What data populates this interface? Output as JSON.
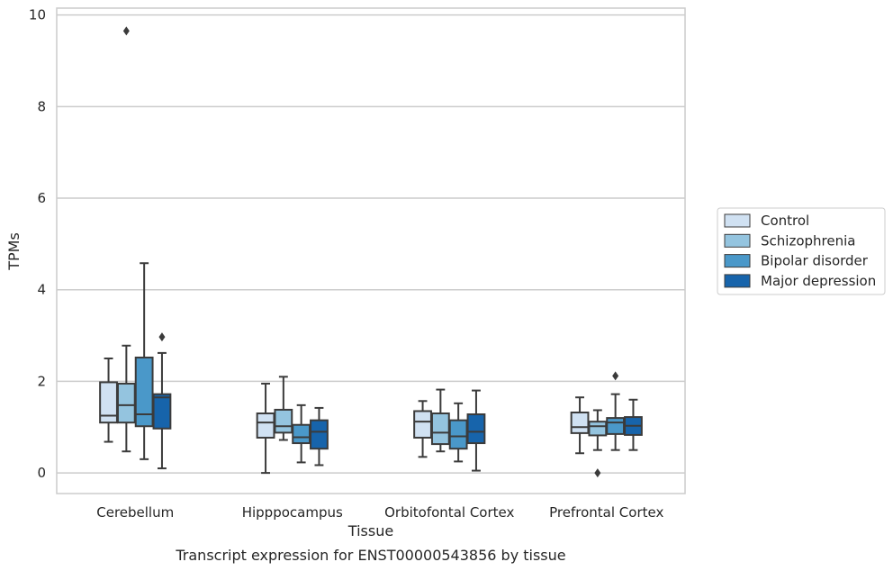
{
  "chart_data": {
    "type": "box",
    "title": "",
    "caption": "Transcript expression for ENST00000543856 by tissue",
    "xlabel": "Tissue",
    "ylabel": "TPMs",
    "ylim": [
      -0.45,
      10.15
    ],
    "yticks": [
      0,
      2,
      4,
      6,
      8,
      10
    ],
    "grid": "horizontal",
    "legend_position": "right",
    "categories": [
      "Cerebellum",
      "Hipppocampus",
      "Orbitofontal Cortex",
      "Prefrontal Cortex"
    ],
    "series": [
      {
        "name": "Control",
        "color": "#d0e1f2",
        "boxes": [
          {
            "whislo": 0.68,
            "q1": 1.1,
            "med": 1.25,
            "q3": 1.98,
            "whishi": 2.5,
            "fliers": []
          },
          {
            "whislo": 0.0,
            "q1": 0.77,
            "med": 1.1,
            "q3": 1.3,
            "whishi": 1.95,
            "fliers": []
          },
          {
            "whislo": 0.35,
            "q1": 0.77,
            "med": 1.12,
            "q3": 1.35,
            "whishi": 1.57,
            "fliers": []
          },
          {
            "whislo": 0.43,
            "q1": 0.87,
            "med": 1.0,
            "q3": 1.32,
            "whishi": 1.65,
            "fliers": []
          }
        ]
      },
      {
        "name": "Schizophrenia",
        "color": "#94c4df",
        "boxes": [
          {
            "whislo": 0.47,
            "q1": 1.1,
            "med": 1.48,
            "q3": 1.95,
            "whishi": 2.78,
            "fliers": [
              9.65
            ]
          },
          {
            "whislo": 0.72,
            "q1": 0.88,
            "med": 1.02,
            "q3": 1.38,
            "whishi": 2.1,
            "fliers": []
          },
          {
            "whislo": 0.47,
            "q1": 0.63,
            "med": 0.88,
            "q3": 1.3,
            "whishi": 1.82,
            "fliers": []
          },
          {
            "whislo": 0.5,
            "q1": 0.82,
            "med": 1.02,
            "q3": 1.12,
            "whishi": 1.37,
            "fliers": [
              0.0
            ]
          }
        ]
      },
      {
        "name": "Bipolar disorder",
        "color": "#4a98c9",
        "boxes": [
          {
            "whislo": 0.3,
            "q1": 1.02,
            "med": 1.28,
            "q3": 2.52,
            "whishi": 4.58,
            "fliers": []
          },
          {
            "whislo": 0.23,
            "q1": 0.65,
            "med": 0.78,
            "q3": 1.05,
            "whishi": 1.48,
            "fliers": []
          },
          {
            "whislo": 0.25,
            "q1": 0.53,
            "med": 0.8,
            "q3": 1.15,
            "whishi": 1.52,
            "fliers": []
          },
          {
            "whislo": 0.5,
            "q1": 0.85,
            "med": 1.1,
            "q3": 1.2,
            "whishi": 1.72,
            "fliers": [
              2.12
            ]
          }
        ]
      },
      {
        "name": "Major depression",
        "color": "#1764ab",
        "boxes": [
          {
            "whislo": 0.1,
            "q1": 0.97,
            "med": 1.65,
            "q3": 1.72,
            "whishi": 2.62,
            "fliers": [
              2.97
            ]
          },
          {
            "whislo": 0.17,
            "q1": 0.53,
            "med": 0.9,
            "q3": 1.15,
            "whishi": 1.42,
            "fliers": []
          },
          {
            "whislo": 0.05,
            "q1": 0.65,
            "med": 0.9,
            "q3": 1.28,
            "whishi": 1.8,
            "fliers": []
          },
          {
            "whislo": 0.5,
            "q1": 0.83,
            "med": 1.03,
            "q3": 1.22,
            "whishi": 1.6,
            "fliers": []
          }
        ]
      }
    ]
  }
}
